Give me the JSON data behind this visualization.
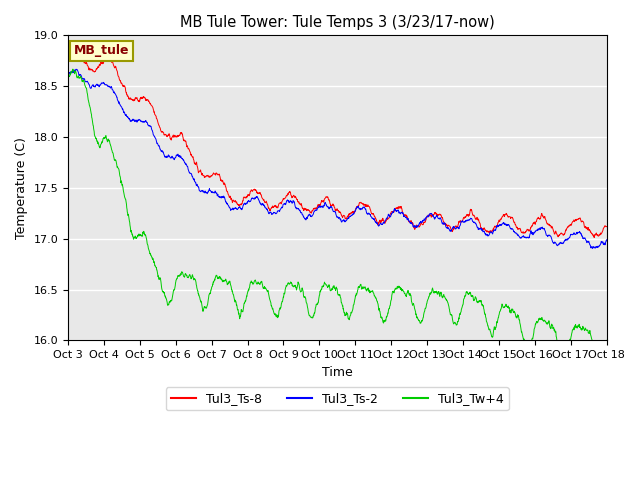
{
  "title": "MB Tule Tower: Tule Temps 3 (3/23/17-now)",
  "xlabel": "Time",
  "ylabel": "Temperature (C)",
  "ylim": [
    16.0,
    19.0
  ],
  "yticks": [
    16.0,
    16.5,
    17.0,
    17.5,
    18.0,
    18.5,
    19.0
  ],
  "xtick_labels": [
    "Oct 3",
    "Oct 4",
    "Oct 5",
    "Oct 6",
    "Oct 7",
    "Oct 8",
    "Oct 9",
    "Oct 10",
    "Oct 11",
    "Oct 12",
    "Oct 13",
    "Oct 14",
    "Oct 15",
    "Oct 16",
    "Oct 17",
    "Oct 18"
  ],
  "series": {
    "Tul3_Ts-8": {
      "color": "#ff0000",
      "label": "Tul3_Ts-8"
    },
    "Tul3_Ts-2": {
      "color": "#0000ff",
      "label": "Tul3_Ts-2"
    },
    "Tul3_Tw+4": {
      "color": "#00cc00",
      "label": "Tul3_Tw+4"
    }
  },
  "legend_box_color": "#ffffcc",
  "legend_box_edge": "#999900",
  "legend_box_text": "MB_tule",
  "plot_bg_color": "#e8e8e8",
  "n_points": 2000,
  "seed": 42
}
